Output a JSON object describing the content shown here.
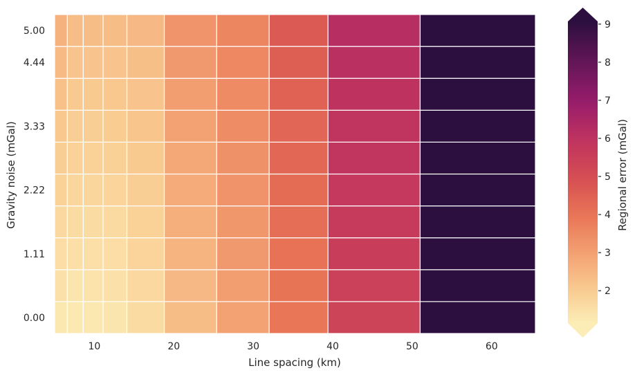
{
  "chart_data": {
    "type": "heatmap",
    "title": "",
    "xlabel": "Line spacing (km)",
    "ylabel": "Gravity noise (mGal)",
    "colorbar_label": "Regional error (mGal)",
    "colormap": "rocket_r",
    "colorbar_extend": "both",
    "grid": false,
    "cell_edge_color": "#ffffff",
    "x_ticks": [
      10,
      20,
      30,
      40,
      50,
      60
    ],
    "x_tick_labels": [
      "10",
      "20",
      "30",
      "40",
      "50",
      "60"
    ],
    "xlim": [
      5,
      65.5
    ],
    "x_cell_edges": [
      5.0,
      6.6,
      8.6,
      11.1,
      14.1,
      18.8,
      25.4,
      32.0,
      39.4,
      51.0,
      65.5
    ],
    "y_values": [
      0.0,
      0.56,
      1.11,
      1.67,
      2.22,
      2.78,
      3.33,
      3.89,
      4.44,
      5.0
    ],
    "y_tick_labels": [
      "0.00",
      "1.11",
      "2.22",
      "3.33",
      "4.44",
      "5.00"
    ],
    "y_tick_values": [
      0.0,
      1.11,
      2.22,
      3.33,
      4.44,
      5.0
    ],
    "colorbar_ticks": [
      2,
      3,
      4,
      5,
      6,
      7,
      8,
      9
    ],
    "colorbar_range": [
      1.15,
      9.07
    ],
    "values": [
      [
        1.3,
        1.25,
        1.3,
        1.35,
        1.6,
        2.35,
        2.95,
        3.95,
        5.35,
        9.5
      ],
      [
        1.45,
        1.35,
        1.4,
        1.45,
        1.7,
        2.45,
        3.05,
        4.0,
        5.45,
        9.5
      ],
      [
        1.55,
        1.5,
        1.5,
        1.55,
        1.8,
        2.55,
        3.15,
        4.05,
        5.55,
        9.5
      ],
      [
        1.7,
        1.6,
        1.6,
        1.65,
        1.85,
        2.65,
        3.2,
        4.15,
        5.65,
        9.5
      ],
      [
        1.85,
        1.75,
        1.75,
        1.8,
        1.95,
        2.75,
        3.3,
        4.2,
        5.75,
        9.5
      ],
      [
        1.95,
        1.85,
        1.85,
        1.9,
        2.05,
        2.85,
        3.35,
        4.3,
        5.85,
        9.5
      ],
      [
        2.1,
        1.95,
        1.95,
        2.0,
        2.15,
        2.95,
        3.45,
        4.35,
        5.9,
        9.5
      ],
      [
        2.25,
        2.05,
        2.05,
        2.1,
        2.2,
        3.05,
        3.5,
        4.45,
        6.0,
        9.5
      ],
      [
        2.4,
        2.2,
        2.2,
        2.2,
        2.3,
        3.15,
        3.55,
        4.55,
        6.1,
        9.5
      ],
      [
        2.6,
        2.35,
        2.35,
        2.35,
        2.45,
        3.25,
        3.6,
        4.65,
        6.2,
        9.5
      ]
    ],
    "values_note": "rows ordered bottom (gravity noise 0.00) to top (5.00); columns ordered by line spacing cells left to right"
  },
  "colors": {
    "under": "#FCEDB6",
    "over": "#2C0F3E",
    "stops": [
      {
        "v": 1.0,
        "c": "#FAEBDD"
      },
      {
        "v": 1.15,
        "c": "#FCEDB6"
      },
      {
        "v": 2.0,
        "c": "#F9CC92"
      },
      {
        "v": 3.0,
        "c": "#F3A072"
      },
      {
        "v": 4.0,
        "c": "#E87456"
      },
      {
        "v": 5.0,
        "c": "#D44D53"
      },
      {
        "v": 6.0,
        "c": "#BE3260"
      },
      {
        "v": 7.0,
        "c": "#951C6B"
      },
      {
        "v": 8.0,
        "c": "#631658"
      },
      {
        "v": 9.07,
        "c": "#2C0F3E"
      }
    ]
  }
}
